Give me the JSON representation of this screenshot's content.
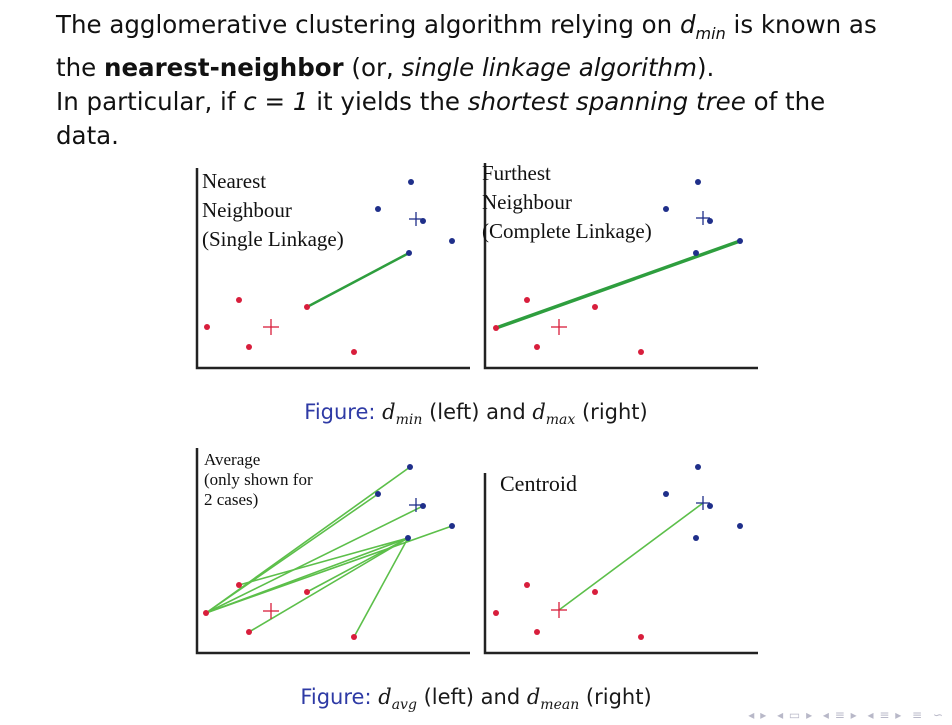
{
  "intro": {
    "l1_a": "The agglomerative clustering algorithm relying on ",
    "l1_var": "d",
    "l1_sub": "min",
    "l1_b": " is known as",
    "l2_a": "the ",
    "l2_bold": "nearest-neighbor",
    "l2_b": " (or, ",
    "l2_ital": "single linkage algorithm",
    "l2_c": ").",
    "l3_a": "In particular, if ",
    "l3_math": "c = 1",
    "l3_b": " it yields the ",
    "l3_ital": "shortest spanning tree",
    "l3_c": " of the",
    "l4": "data."
  },
  "panels": [
    {
      "id": "nearest",
      "label_lines": [
        "Nearest",
        "Neighbour",
        "(Single Linkage)"
      ]
    },
    {
      "id": "furthest",
      "label_lines": [
        "Furthest",
        "Neighbour",
        "(Complete Linkage)"
      ]
    },
    {
      "id": "average",
      "label_lines": [
        "Average",
        "(only shown for",
        "2 cases)"
      ]
    },
    {
      "id": "centroid",
      "label_lines": [
        "Centroid"
      ]
    }
  ],
  "captions": [
    {
      "prefix": "Figure:",
      "v1": "d",
      "s1": "min",
      "mid": " (left) and ",
      "v2": "d",
      "s2": "max",
      "end": " (right)"
    },
    {
      "prefix": "Figure:",
      "v1": "d",
      "s1": "avg",
      "mid": " (left) and ",
      "v2": "d",
      "s2": "mean",
      "end": " (right)"
    }
  ],
  "colors": {
    "red_cluster": "#d81e3c",
    "blue_cluster": "#1f2f8a",
    "link_line": "#2e9e3e",
    "axis": "#222222",
    "caption_label": "#2e3aa5"
  },
  "nav_icons": [
    "nav-first-icon",
    "nav-prev-icon",
    "nav-frame-icon",
    "nav-section-icon",
    "nav-subsection-icon",
    "nav-align-icon",
    "search-icon"
  ]
}
